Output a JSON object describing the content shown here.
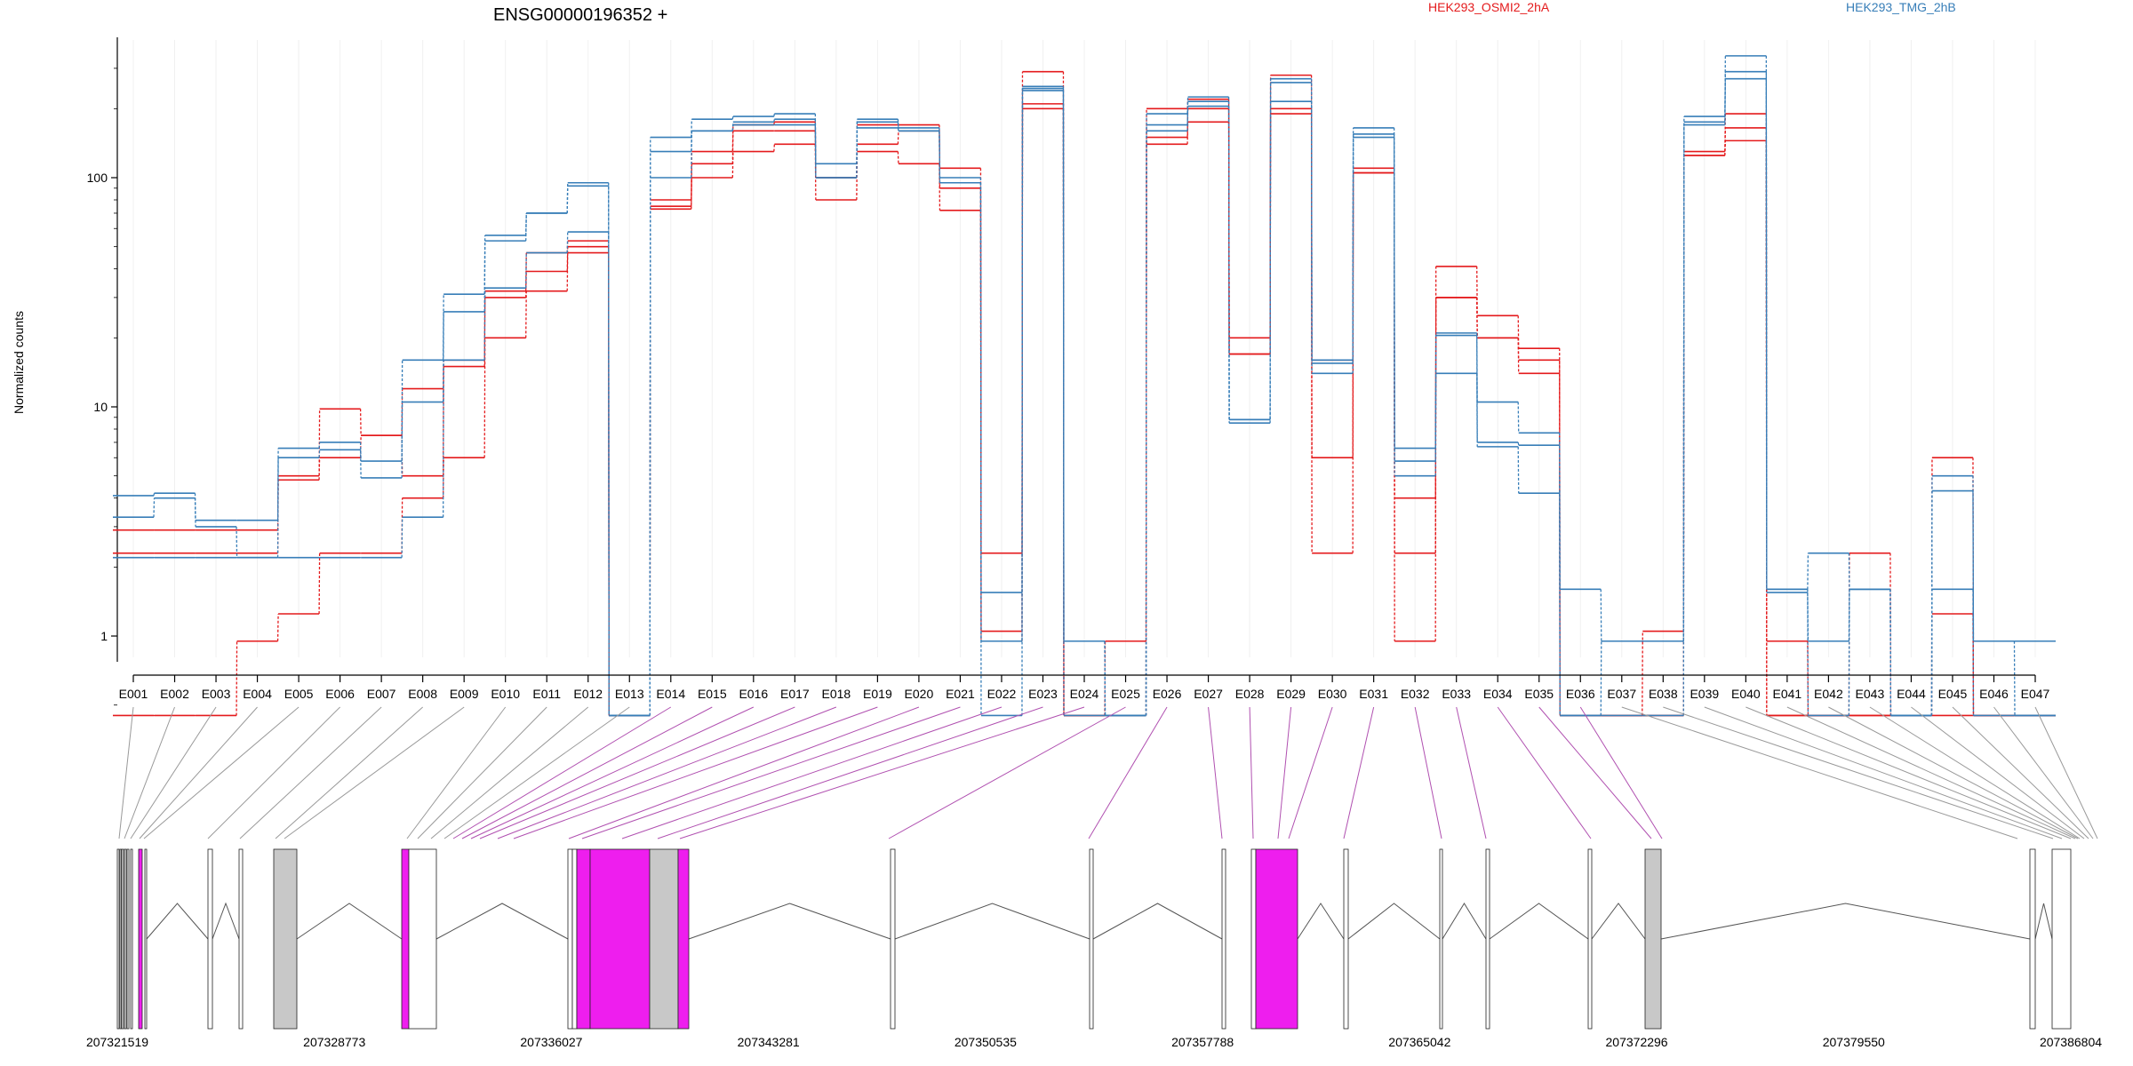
{
  "chart_data": {
    "type": "line",
    "title": "ENSG00000196352 +",
    "ylabel": "Normalized counts",
    "xlabel": "",
    "y_scale": "log",
    "y_ticks": [
      "1",
      "10",
      "100"
    ],
    "grid": "vertical-light",
    "legend": [
      {
        "name": "HEK293_OSMI2_2hA",
        "color": "#e41a1c"
      },
      {
        "name": "HEK293_TMG_2hB",
        "color": "#377eb8"
      }
    ],
    "categories": [
      "E001",
      "E002",
      "E003",
      "E004",
      "E005",
      "E006",
      "E007",
      "E008",
      "E009",
      "E010",
      "E011",
      "E012",
      "E013",
      "E014",
      "E015",
      "E016",
      "E017",
      "E018",
      "E019",
      "E020",
      "E021",
      "E022",
      "E023",
      "E024",
      "E025",
      "E026",
      "E027",
      "E028",
      "E029",
      "E030",
      "E031",
      "E032",
      "E033",
      "E034",
      "E035",
      "E036",
      "E037",
      "E038",
      "E039",
      "E040",
      "E041",
      "E042",
      "E043",
      "E044",
      "E045",
      "E046",
      "E047"
    ],
    "series": [
      {
        "name": "HEK293_OSMI2_2hA",
        "color": "#e41a1c",
        "values": [
          2.9,
          2.9,
          2.9,
          2.9,
          5.0,
          6.0,
          7.5,
          12,
          16,
          32,
          47,
          53,
          0.45,
          80,
          130,
          170,
          175,
          100,
          170,
          170,
          110,
          2.3,
          290,
          0.45,
          0.95,
          200,
          220,
          20,
          280,
          16,
          110,
          2.3,
          41,
          25,
          18,
          0.45,
          0.45,
          1.05,
          130,
          190,
          0.95,
          0.45,
          2.3,
          0.45,
          6.0,
          0.45,
          0.45
        ]
      },
      {
        "name": "HEK293_OSMI2_2hA",
        "color": "#e41a1c",
        "values": [
          2.3,
          2.3,
          2.3,
          2.3,
          4.8,
          9.8,
          7.5,
          5.0,
          15,
          30,
          39,
          50,
          0.45,
          75,
          115,
          160,
          160,
          100,
          140,
          160,
          90,
          1.05,
          210,
          0.45,
          0.45,
          150,
          200,
          17,
          200,
          6.0,
          105,
          4.0,
          30,
          20,
          16,
          0.45,
          0.45,
          0.45,
          125,
          165,
          0.45,
          0.45,
          0.45,
          0.45,
          1.25,
          0.45,
          0.45
        ]
      },
      {
        "name": "HEK293_OSMI2_2hA",
        "color": "#e41a1c",
        "values": [
          0.45,
          0.45,
          0.45,
          0.95,
          1.25,
          2.3,
          2.3,
          4.0,
          6.0,
          20,
          32,
          47,
          0.45,
          73,
          100,
          130,
          140,
          80,
          130,
          115,
          72,
          0.95,
          200,
          0.45,
          0.45,
          140,
          175,
          17,
          190,
          2.3,
          105,
          0.95,
          30,
          20,
          14,
          0.45,
          0.45,
          0.45,
          125,
          145,
          0.45,
          0.45,
          0.45,
          0.45,
          0.45,
          0.45,
          0.45
        ]
      },
      {
        "name": "HEK293_TMG_2hB",
        "color": "#377eb8",
        "values": [
          4.1,
          4.2,
          3.2,
          3.2,
          6.6,
          7.0,
          5.8,
          16,
          31,
          56,
          70,
          95,
          0.45,
          150,
          180,
          185,
          190,
          115,
          180,
          165,
          95,
          1.55,
          245,
          0.95,
          0.45,
          190,
          225,
          8.5,
          270,
          16,
          165,
          6.6,
          21,
          10.5,
          7.7,
          1.6,
          0.95,
          0.95,
          185,
          340,
          1.6,
          2.3,
          1.6,
          0.45,
          5.0,
          0.95,
          0.95
        ]
      },
      {
        "name": "HEK293_TMG_2hB",
        "color": "#377eb8",
        "values": [
          3.3,
          4.0,
          3.0,
          2.2,
          6.0,
          6.5,
          4.9,
          10.5,
          26,
          53,
          70,
          92,
          0.45,
          130,
          160,
          175,
          180,
          100,
          175,
          160,
          100,
          0.95,
          250,
          0.95,
          0.45,
          170,
          205,
          8.8,
          260,
          15.5,
          155,
          5.8,
          20.5,
          7.0,
          6.8,
          0.45,
          0.95,
          0.95,
          175,
          290,
          1.55,
          0.95,
          1.6,
          0.45,
          4.3,
          0.95,
          0.45
        ]
      },
      {
        "name": "HEK293_TMG_2hB",
        "color": "#377eb8",
        "values": [
          2.2,
          2.2,
          2.2,
          2.2,
          2.2,
          2.2,
          2.2,
          3.3,
          16,
          33,
          47,
          58,
          0.45,
          100,
          160,
          170,
          170,
          100,
          165,
          160,
          95,
          0.45,
          240,
          0.45,
          0.45,
          160,
          215,
          8.8,
          215,
          14,
          150,
          5.0,
          14,
          6.7,
          4.2,
          0.45,
          0.45,
          0.45,
          170,
          270,
          1.6,
          0.45,
          1.6,
          0.45,
          1.6,
          0.45,
          0.45
        ]
      }
    ],
    "gene_model": {
      "genomic_ticks": [
        "207321519",
        "207328773",
        "207336027",
        "207343281",
        "207350535",
        "207357788",
        "207365042",
        "207372296",
        "207379550",
        "207386804"
      ],
      "highlight_color": "#ee1eee",
      "intron_color": "#888888"
    }
  }
}
